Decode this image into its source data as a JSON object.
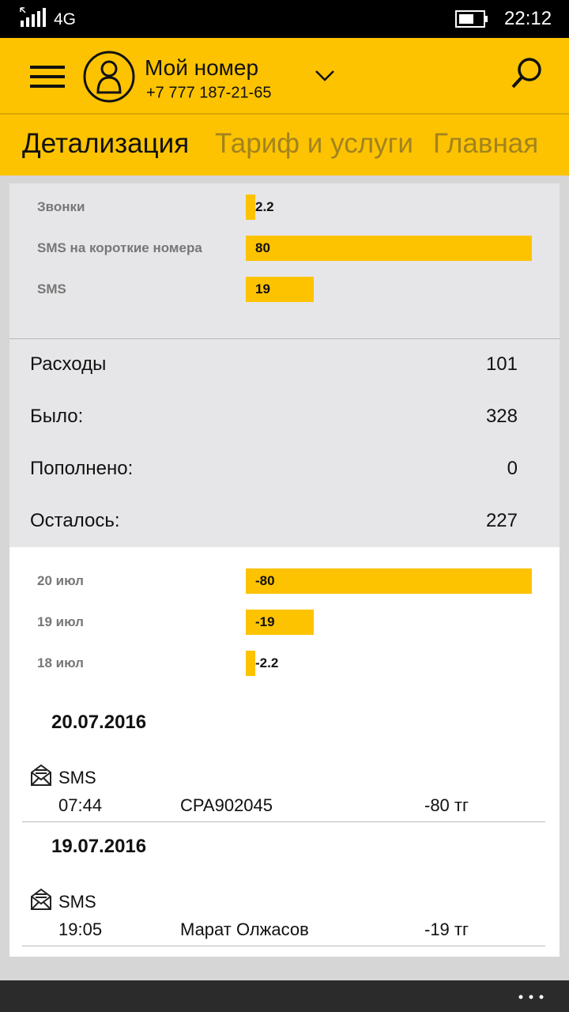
{
  "status_bar": {
    "network": "4G",
    "time": "22:12"
  },
  "header": {
    "title": "Мой номер",
    "phone": "+7 777 187-21-65"
  },
  "tabs": [
    "Детализация",
    "Тариф и услуги",
    "Главная"
  ],
  "usage_chart": {
    "type": "bar",
    "categories": [
      "Звонки",
      "SMS на короткие номера",
      "SMS"
    ],
    "values": [
      2.2,
      80,
      19
    ],
    "color": "#fdc300"
  },
  "summary": [
    {
      "label": "Расходы",
      "value": 101
    },
    {
      "label": "Было:",
      "value": 328
    },
    {
      "label": "Пополнено:",
      "value": 0
    },
    {
      "label": "Осталось:",
      "value": 227
    }
  ],
  "daily_chart": {
    "type": "bar",
    "categories": [
      "20 июл",
      "19 июл",
      "18 июл"
    ],
    "values": [
      -80,
      -19,
      -2.2
    ],
    "color": "#fdc300"
  },
  "transactions": [
    {
      "date": "20.07.2016",
      "kind": "SMS",
      "time": "07:44",
      "party": "CPA902045",
      "amount": "-80 тг"
    },
    {
      "date": "19.07.2016",
      "kind": "SMS",
      "time": "19:05",
      "party": "Марат Олжасов",
      "amount": "-19 тг"
    }
  ]
}
